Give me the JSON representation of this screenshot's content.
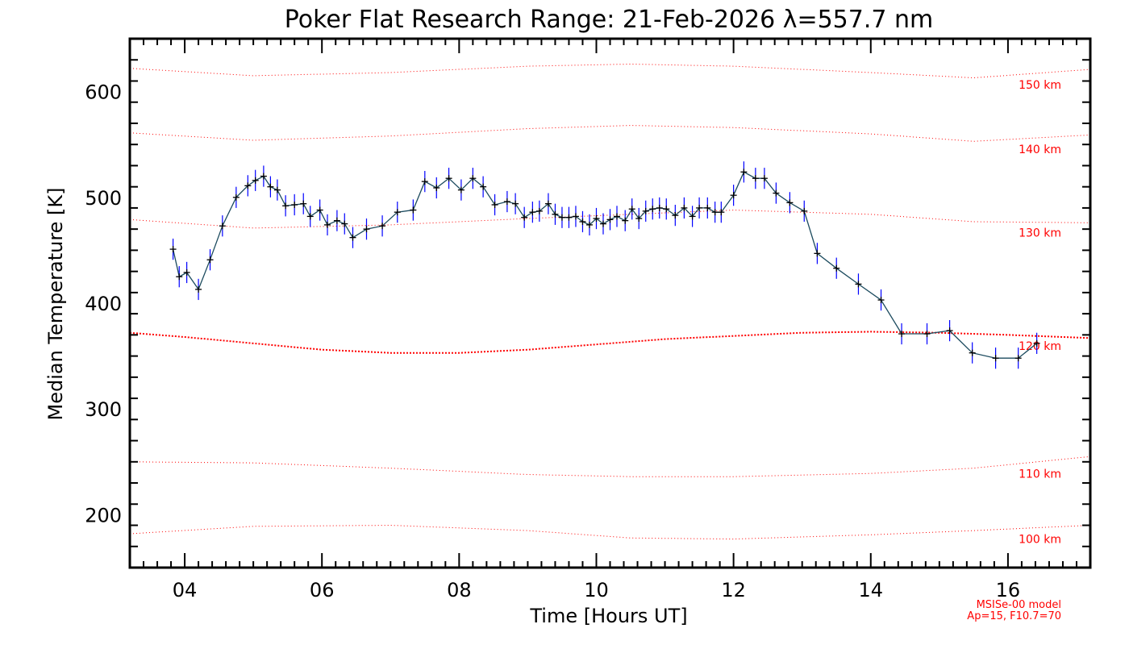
{
  "chart_data": {
    "type": "line",
    "title": "Poker Flat Research Range: 21-Feb-2026 λ=557.7 nm",
    "xlabel": "Time [Hours UT]",
    "ylabel": "Median Temperature [K]",
    "xlim": [
      3.2,
      17.2
    ],
    "ylim": [
      150,
      650
    ],
    "x_ticks": [
      {
        "value": 4,
        "label": "04"
      },
      {
        "value": 6,
        "label": "06"
      },
      {
        "value": 8,
        "label": "08"
      },
      {
        "value": 10,
        "label": "10"
      },
      {
        "value": 12,
        "label": "12"
      },
      {
        "value": 14,
        "label": "14"
      },
      {
        "value": 16,
        "label": "16"
      }
    ],
    "y_ticks": [
      {
        "value": 200,
        "label": "200"
      },
      {
        "value": 300,
        "label": "300"
      },
      {
        "value": 400,
        "label": "400"
      },
      {
        "value": 500,
        "label": "500"
      },
      {
        "value": 600,
        "label": "600"
      }
    ],
    "grid": false,
    "series": [
      {
        "color": "#000000",
        "errorbar_color": "#0000ff",
        "errorbar_halfwidth": 10,
        "x": [
          3.83,
          3.92,
          4.03,
          4.2,
          4.37,
          4.55,
          4.75,
          4.92,
          5.03,
          5.15,
          5.25,
          5.35,
          5.47,
          5.6,
          5.73,
          5.83,
          5.97,
          6.08,
          6.22,
          6.33,
          6.45,
          6.65,
          6.88,
          7.1,
          7.33,
          7.5,
          7.67,
          7.85,
          8.03,
          8.2,
          8.35,
          8.52,
          8.7,
          8.82,
          8.95,
          9.07,
          9.17,
          9.3,
          9.4,
          9.5,
          9.6,
          9.7,
          9.8,
          9.9,
          10.0,
          10.1,
          10.2,
          10.3,
          10.42,
          10.52,
          10.62,
          10.72,
          10.82,
          10.92,
          11.02,
          11.15,
          11.28,
          11.4,
          11.5,
          11.62,
          11.73,
          11.82,
          12.0,
          12.15,
          12.32,
          12.45,
          12.62,
          12.82,
          13.03,
          13.22,
          13.5,
          13.82,
          14.15,
          14.45,
          14.82,
          15.15,
          15.48,
          15.82,
          16.15,
          16.42
        ],
        "y": [
          451,
          425,
          429,
          413,
          441,
          473,
          500,
          511,
          516,
          520,
          510,
          507,
          492,
          493,
          494,
          482,
          488,
          474,
          478,
          475,
          462,
          470,
          473,
          486,
          488,
          515,
          509,
          518,
          507,
          518,
          510,
          493,
          496,
          494,
          481,
          486,
          487,
          494,
          484,
          481,
          481,
          482,
          477,
          474,
          480,
          475,
          479,
          482,
          478,
          489,
          480,
          487,
          489,
          490,
          489,
          483,
          490,
          482,
          490,
          490,
          486,
          486,
          502,
          524,
          518,
          518,
          504,
          495,
          487,
          447,
          433,
          418,
          403,
          371,
          371,
          374,
          353,
          348,
          348,
          362
        ]
      }
    ],
    "model_curves": [
      {
        "label": "150 km",
        "x": [
          3.2,
          5,
          7,
          9,
          10.5,
          12,
          14,
          15.5,
          17.2
        ],
        "y": [
          622,
          615,
          618,
          624,
          626,
          624,
          618,
          613,
          621
        ]
      },
      {
        "label": "140 km",
        "x": [
          3.2,
          5,
          7,
          9,
          10.5,
          12,
          14,
          15.5,
          17.2
        ],
        "y": [
          561,
          554,
          558,
          565,
          568,
          566,
          560,
          553,
          559
        ]
      },
      {
        "label": "130 km",
        "x": [
          3.2,
          5,
          7,
          9,
          10.5,
          12,
          14,
          15.5,
          17.2
        ],
        "y": [
          479,
          471,
          474,
          480,
          484,
          488,
          484,
          477,
          476
        ]
      },
      {
        "label": "120 km",
        "x": [
          3.2,
          4,
          5,
          6,
          7,
          8,
          9,
          10,
          11,
          12,
          13,
          14,
          15,
          16,
          17.2
        ],
        "y": [
          372,
          368,
          362,
          356,
          353,
          353,
          356,
          361,
          366,
          369,
          372,
          373,
          372,
          370,
          367
        ]
      },
      {
        "label": "110 km",
        "x": [
          3.2,
          5,
          7,
          9,
          10.5,
          12,
          14,
          15.5,
          17.2
        ],
        "y": [
          250,
          249,
          244,
          238,
          236,
          236,
          239,
          244,
          255
        ]
      },
      {
        "label": "100 km",
        "x": [
          3.2,
          5,
          7,
          9,
          10.5,
          12,
          14,
          15.5,
          17.2
        ],
        "y": [
          182,
          189,
          190,
          185,
          178,
          177,
          181,
          185,
          190
        ]
      }
    ],
    "annotations": [
      "MSISe-00 model",
      "Ap=15, F10.7=70"
    ]
  }
}
